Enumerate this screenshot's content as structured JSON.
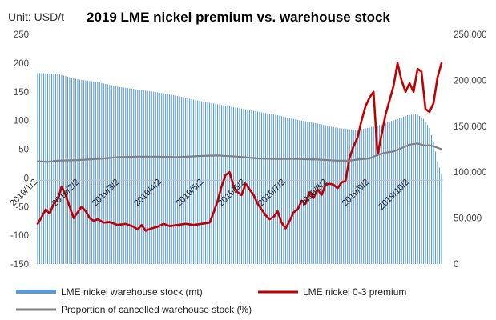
{
  "chart_data": {
    "type": "bar+line",
    "title": "2019 LME nickel premium vs. warehouse stock",
    "unit_label": "Unit: USD/t",
    "left_axis": {
      "min": -150,
      "max": 250,
      "step": 50,
      "ticks": [
        "-150",
        "-100",
        "-50",
        "0",
        "50",
        "100",
        "150",
        "200",
        "250"
      ]
    },
    "right_axis": {
      "min": 0,
      "max": 250000,
      "step": 50000,
      "ticks": [
        "0",
        "50,000",
        "100,000",
        "150,000",
        "200,000",
        "250,000"
      ]
    },
    "x_labels": [
      "2019/1/2",
      "2019/2/2",
      "2019/3/2",
      "2019/4/2",
      "2019/5/2",
      "2019/6/2",
      "2019/7/2",
      "2019/8/2",
      "2019/9/2",
      "2019/10/2"
    ],
    "x_label_positions": [
      0,
      21,
      41,
      62,
      83,
      104,
      124,
      145,
      166,
      186
    ],
    "total_days": 202,
    "series": [
      {
        "name": "LME nickel warehouse stock (mt)",
        "axis": "right",
        "kind": "bar",
        "color": "#5b9bd5",
        "points": [
          [
            0,
            208000
          ],
          [
            10,
            207000
          ],
          [
            20,
            201000
          ],
          [
            30,
            198000
          ],
          [
            40,
            193000
          ],
          [
            50,
            190000
          ],
          [
            60,
            187000
          ],
          [
            70,
            183000
          ],
          [
            80,
            178000
          ],
          [
            90,
            174000
          ],
          [
            100,
            170000
          ],
          [
            110,
            166000
          ],
          [
            120,
            162000
          ],
          [
            130,
            157000
          ],
          [
            140,
            153000
          ],
          [
            150,
            148000
          ],
          [
            160,
            146000
          ],
          [
            165,
            148000
          ],
          [
            172,
            152000
          ],
          [
            180,
            158000
          ],
          [
            185,
            162000
          ],
          [
            190,
            163000
          ],
          [
            193,
            158000
          ],
          [
            196,
            148000
          ],
          [
            198,
            133000
          ],
          [
            200,
            112000
          ],
          [
            202,
            98000
          ]
        ]
      },
      {
        "name": "LME nickel 0-3 premium",
        "axis": "left",
        "kind": "line",
        "color": "#c00000",
        "points": [
          [
            0,
            -80
          ],
          [
            2,
            -68
          ],
          [
            4,
            -55
          ],
          [
            6,
            -62
          ],
          [
            8,
            -45
          ],
          [
            10,
            -38
          ],
          [
            12,
            -15
          ],
          [
            14,
            -30
          ],
          [
            16,
            -50
          ],
          [
            18,
            -70
          ],
          [
            20,
            -60
          ],
          [
            22,
            -50
          ],
          [
            24,
            -58
          ],
          [
            26,
            -70
          ],
          [
            28,
            -75
          ],
          [
            30,
            -72
          ],
          [
            33,
            -78
          ],
          [
            36,
            -77
          ],
          [
            40,
            -82
          ],
          [
            44,
            -80
          ],
          [
            48,
            -85
          ],
          [
            50,
            -90
          ],
          [
            52,
            -82
          ],
          [
            54,
            -92
          ],
          [
            57,
            -88
          ],
          [
            60,
            -85
          ],
          [
            63,
            -80
          ],
          [
            66,
            -84
          ],
          [
            70,
            -82
          ],
          [
            74,
            -80
          ],
          [
            78,
            -82
          ],
          [
            82,
            -80
          ],
          [
            86,
            -78
          ],
          [
            88,
            -60
          ],
          [
            90,
            -40
          ],
          [
            92,
            -15
          ],
          [
            94,
            5
          ],
          [
            96,
            10
          ],
          [
            98,
            -15
          ],
          [
            100,
            -25
          ],
          [
            102,
            -30
          ],
          [
            104,
            -10
          ],
          [
            106,
            -20
          ],
          [
            108,
            -30
          ],
          [
            110,
            -45
          ],
          [
            112,
            -55
          ],
          [
            114,
            -65
          ],
          [
            116,
            -72
          ],
          [
            118,
            -68
          ],
          [
            120,
            -58
          ],
          [
            122,
            -78
          ],
          [
            124,
            -88
          ],
          [
            126,
            -75
          ],
          [
            128,
            -60
          ],
          [
            130,
            -55
          ],
          [
            132,
            -40
          ],
          [
            134,
            -45
          ],
          [
            136,
            -25
          ],
          [
            138,
            -35
          ],
          [
            140,
            -20
          ],
          [
            142,
            -30
          ],
          [
            144,
            -12
          ],
          [
            146,
            -10
          ],
          [
            148,
            -12
          ],
          [
            150,
            -18
          ],
          [
            152,
            -8
          ],
          [
            154,
            -5
          ],
          [
            156,
            35
          ],
          [
            158,
            55
          ],
          [
            160,
            70
          ],
          [
            162,
            100
          ],
          [
            164,
            125
          ],
          [
            166,
            140
          ],
          [
            168,
            150
          ],
          [
            170,
            40
          ],
          [
            172,
            75
          ],
          [
            174,
            110
          ],
          [
            176,
            135
          ],
          [
            178,
            160
          ],
          [
            180,
            200
          ],
          [
            182,
            170
          ],
          [
            184,
            150
          ],
          [
            186,
            165
          ],
          [
            188,
            150
          ],
          [
            190,
            190
          ],
          [
            192,
            185
          ],
          [
            194,
            120
          ],
          [
            196,
            115
          ],
          [
            198,
            130
          ],
          [
            200,
            175
          ],
          [
            202,
            200
          ]
        ]
      },
      {
        "name": "Proportion of cancelled warehouse stock (%)",
        "axis": "left",
        "kind": "line",
        "color": "#7f7f7f",
        "points": [
          [
            0,
            29
          ],
          [
            5,
            28
          ],
          [
            10,
            30
          ],
          [
            20,
            31
          ],
          [
            30,
            33
          ],
          [
            40,
            36
          ],
          [
            50,
            37
          ],
          [
            60,
            37
          ],
          [
            70,
            36
          ],
          [
            80,
            38
          ],
          [
            90,
            39
          ],
          [
            100,
            37
          ],
          [
            110,
            34
          ],
          [
            120,
            33
          ],
          [
            130,
            33
          ],
          [
            140,
            32
          ],
          [
            150,
            30
          ],
          [
            156,
            30
          ],
          [
            160,
            32
          ],
          [
            166,
            34
          ],
          [
            170,
            40
          ],
          [
            174,
            44
          ],
          [
            178,
            46
          ],
          [
            182,
            52
          ],
          [
            186,
            58
          ],
          [
            190,
            60
          ],
          [
            194,
            56
          ],
          [
            196,
            57
          ],
          [
            198,
            55
          ],
          [
            202,
            50
          ]
        ]
      }
    ],
    "grid": false,
    "legend_position": "bottom"
  }
}
